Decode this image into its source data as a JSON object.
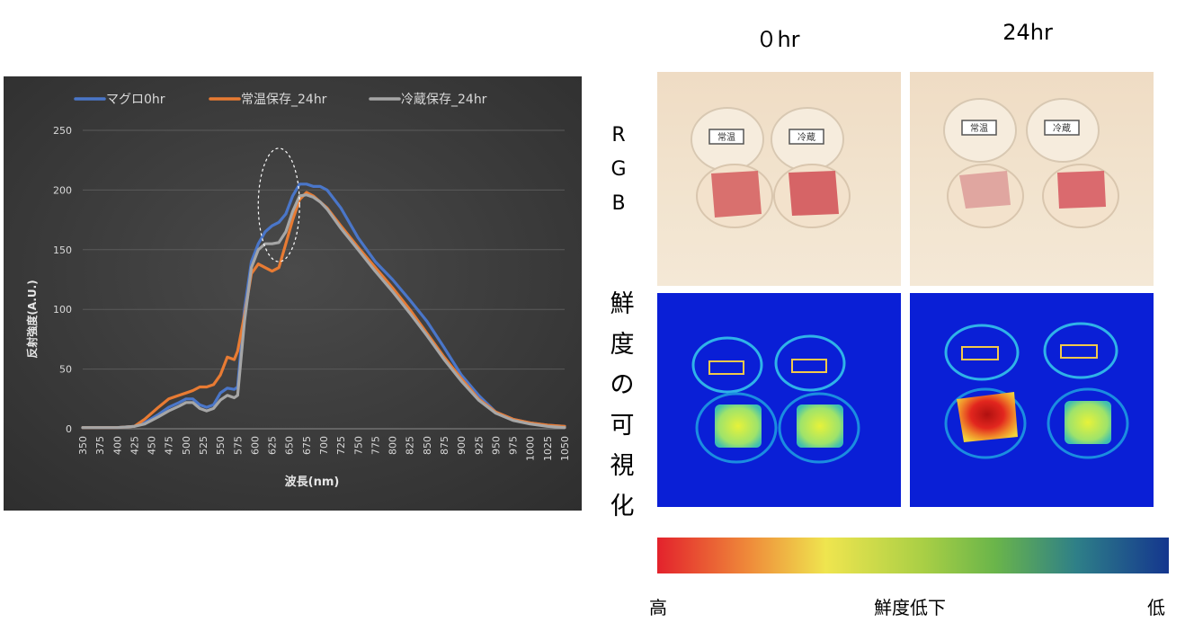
{
  "header": {
    "col_0hr": "０hr",
    "col_24hr": "24hr"
  },
  "rows": {
    "rgb_chars": [
      "R",
      "G",
      "B"
    ],
    "vis_chars": [
      "鮮",
      "度",
      "の",
      "可",
      "視",
      "化"
    ]
  },
  "photos": {
    "label_jouon": "常温",
    "label_reizou": "冷蔵"
  },
  "colorbar": {
    "left_label": "高",
    "middle_label": "鮮度低下",
    "right_label": "低",
    "colors": [
      "#e3222c",
      "#ef8b3a",
      "#efe54f",
      "#a9cf45",
      "#6ab54a",
      "#2e7f88",
      "#14368e"
    ]
  },
  "chart_data": {
    "type": "line",
    "xlabel": "波長(nm)",
    "ylabel": "反射強度(A.U.)",
    "xlim": [
      350,
      1050
    ],
    "ylim": [
      0,
      250
    ],
    "x_ticks": [
      350,
      375,
      400,
      425,
      450,
      475,
      500,
      525,
      550,
      575,
      600,
      625,
      650,
      675,
      700,
      725,
      750,
      775,
      800,
      825,
      850,
      875,
      900,
      925,
      950,
      975,
      1000,
      1025,
      1050
    ],
    "y_ticks": [
      0,
      50,
      100,
      150,
      200,
      250
    ],
    "grid": true,
    "legend_position": "top",
    "background": "#404040",
    "series": [
      {
        "name": "マグロ0hr",
        "color": "#4a76c9",
        "points": [
          [
            350,
            1
          ],
          [
            400,
            1
          ],
          [
            425,
            2
          ],
          [
            440,
            5
          ],
          [
            460,
            12
          ],
          [
            475,
            18
          ],
          [
            490,
            22
          ],
          [
            500,
            25
          ],
          [
            510,
            25
          ],
          [
            520,
            20
          ],
          [
            530,
            18
          ],
          [
            540,
            20
          ],
          [
            550,
            30
          ],
          [
            560,
            34
          ],
          [
            570,
            33
          ],
          [
            575,
            35
          ],
          [
            585,
            100
          ],
          [
            595,
            140
          ],
          [
            605,
            155
          ],
          [
            615,
            165
          ],
          [
            625,
            170
          ],
          [
            635,
            173
          ],
          [
            645,
            180
          ],
          [
            655,
            195
          ],
          [
            665,
            205
          ],
          [
            675,
            205
          ],
          [
            685,
            203
          ],
          [
            695,
            203
          ],
          [
            705,
            200
          ],
          [
            725,
            185
          ],
          [
            750,
            160
          ],
          [
            775,
            140
          ],
          [
            800,
            125
          ],
          [
            825,
            108
          ],
          [
            850,
            90
          ],
          [
            875,
            68
          ],
          [
            900,
            45
          ],
          [
            925,
            28
          ],
          [
            950,
            14
          ],
          [
            975,
            8
          ],
          [
            1000,
            5
          ],
          [
            1025,
            3
          ],
          [
            1050,
            2
          ]
        ]
      },
      {
        "name": "常温保存_24hr",
        "color": "#e87b33",
        "points": [
          [
            350,
            1
          ],
          [
            400,
            1
          ],
          [
            425,
            2
          ],
          [
            440,
            8
          ],
          [
            460,
            18
          ],
          [
            475,
            25
          ],
          [
            490,
            28
          ],
          [
            500,
            30
          ],
          [
            510,
            32
          ],
          [
            520,
            35
          ],
          [
            530,
            35
          ],
          [
            540,
            37
          ],
          [
            550,
            45
          ],
          [
            560,
            60
          ],
          [
            570,
            58
          ],
          [
            575,
            65
          ],
          [
            585,
            95
          ],
          [
            595,
            130
          ],
          [
            605,
            138
          ],
          [
            615,
            135
          ],
          [
            625,
            132
          ],
          [
            635,
            135
          ],
          [
            645,
            155
          ],
          [
            655,
            175
          ],
          [
            665,
            192
          ],
          [
            675,
            198
          ],
          [
            685,
            195
          ],
          [
            695,
            190
          ],
          [
            705,
            185
          ],
          [
            725,
            170
          ],
          [
            750,
            152
          ],
          [
            775,
            135
          ],
          [
            800,
            118
          ],
          [
            825,
            100
          ],
          [
            850,
            80
          ],
          [
            875,
            60
          ],
          [
            900,
            42
          ],
          [
            925,
            25
          ],
          [
            950,
            14
          ],
          [
            975,
            8
          ],
          [
            1000,
            5
          ],
          [
            1025,
            3
          ],
          [
            1050,
            2
          ]
        ]
      },
      {
        "name": "冷蔵保存_24hr",
        "color": "#a6a6a6",
        "points": [
          [
            350,
            1
          ],
          [
            400,
            1
          ],
          [
            425,
            2
          ],
          [
            440,
            4
          ],
          [
            460,
            10
          ],
          [
            475,
            15
          ],
          [
            490,
            19
          ],
          [
            500,
            22
          ],
          [
            510,
            22
          ],
          [
            520,
            17
          ],
          [
            530,
            15
          ],
          [
            540,
            17
          ],
          [
            550,
            24
          ],
          [
            560,
            28
          ],
          [
            570,
            26
          ],
          [
            575,
            28
          ],
          [
            585,
            90
          ],
          [
            595,
            135
          ],
          [
            605,
            150
          ],
          [
            615,
            155
          ],
          [
            625,
            155
          ],
          [
            635,
            156
          ],
          [
            645,
            165
          ],
          [
            655,
            182
          ],
          [
            665,
            195
          ],
          [
            675,
            196
          ],
          [
            685,
            194
          ],
          [
            695,
            190
          ],
          [
            705,
            184
          ],
          [
            725,
            168
          ],
          [
            750,
            150
          ],
          [
            775,
            132
          ],
          [
            800,
            115
          ],
          [
            825,
            97
          ],
          [
            850,
            78
          ],
          [
            875,
            58
          ],
          [
            900,
            40
          ],
          [
            925,
            24
          ],
          [
            950,
            13
          ],
          [
            975,
            7
          ],
          [
            1000,
            4
          ],
          [
            1025,
            2
          ],
          [
            1050,
            1
          ]
        ]
      }
    ],
    "annotations": [
      {
        "type": "ellipse-highlight",
        "x_range": [
          605,
          665
        ],
        "y_range": [
          140,
          235
        ],
        "style": "dashed-white"
      }
    ]
  }
}
